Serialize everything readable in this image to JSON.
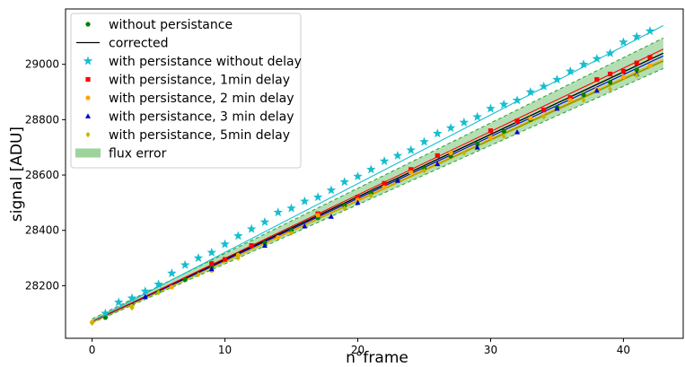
{
  "chart_data": {
    "type": "scatter",
    "title": "",
    "xlabel": "n°frame",
    "ylabel": "signal [ADU]",
    "xlim": [
      -2,
      44.5
    ],
    "ylim": [
      28010,
      29200
    ],
    "x_ticks": [
      0,
      10,
      20,
      30,
      40
    ],
    "y_ticks": [
      28200,
      28400,
      28600,
      28800,
      29000
    ],
    "grid": false,
    "legend_placement": "upper-left",
    "legend": [
      {
        "label": "without persistance",
        "marker": "circle",
        "color": "#008000"
      },
      {
        "label": "corrected",
        "marker": "line",
        "color": "#000000"
      },
      {
        "label": "with persistance without delay",
        "marker": "star",
        "color": "#17becf"
      },
      {
        "label": "with persistance, 1min delay",
        "marker": "square",
        "color": "#ff0000"
      },
      {
        "label": "with persistance, 2 min delay",
        "marker": "circle",
        "color": "#ffa500"
      },
      {
        "label": "with persistance, 3 min delay",
        "marker": "triangle",
        "color": "#0000cd"
      },
      {
        "label": "with persistance, 5min delay",
        "marker": "diamond",
        "color": "#c8b400"
      },
      {
        "label": "flux error",
        "marker": "patch",
        "color": "#82c882"
      }
    ],
    "flux_error_band": {
      "x": [
        0,
        43
      ],
      "lower": [
        28065,
        28985
      ],
      "upper": [
        28080,
        29095
      ],
      "color": "#82c882",
      "edge_color": "#2ca02c"
    },
    "lines": [
      {
        "name": "corrected",
        "color": "#000000",
        "x": [
          0,
          43
        ],
        "y": [
          28070,
          29040
        ]
      },
      {
        "name": "without persistance fit",
        "color": "#008000",
        "x": [
          0,
          43
        ],
        "y": [
          28068,
          29012
        ]
      },
      {
        "name": "without delay fit",
        "color": "#17becf",
        "x": [
          0,
          43
        ],
        "y": [
          28072,
          29140
        ]
      },
      {
        "name": "1min delay fit",
        "color": "#ff0000",
        "x": [
          0,
          43
        ],
        "y": [
          28070,
          29055
        ]
      },
      {
        "name": "2 min delay fit",
        "color": "#ffa500",
        "x": [
          0,
          43
        ],
        "y": [
          28068,
          29018
        ]
      },
      {
        "name": "3 min delay fit",
        "color": "#0000cd",
        "x": [
          0,
          43
        ],
        "y": [
          28068,
          29030
        ]
      },
      {
        "name": "5min delay fit",
        "color": "#c8b400",
        "x": [
          0,
          43
        ],
        "y": [
          28067,
          29010
        ]
      }
    ],
    "series": [
      {
        "name": "without persistance",
        "marker": "circle",
        "color": "#008000",
        "x": [
          1,
          3,
          5,
          7,
          9,
          11,
          13,
          15,
          17,
          19,
          21,
          23,
          25,
          27,
          29,
          31,
          33,
          35,
          37,
          39,
          41
        ],
        "y": [
          28085,
          28130,
          28178,
          28222,
          28268,
          28312,
          28355,
          28400,
          28445,
          28490,
          28535,
          28580,
          28625,
          28668,
          28712,
          28758,
          28800,
          28845,
          28890,
          28935,
          28980
        ]
      },
      {
        "name": "with persistance without delay",
        "marker": "star",
        "color": "#17becf",
        "x": [
          1,
          2,
          3,
          4,
          5,
          6,
          7,
          8,
          9,
          10,
          11,
          12,
          13,
          14,
          15,
          16,
          17,
          18,
          19,
          20,
          21,
          22,
          23,
          24,
          25,
          26,
          27,
          28,
          29,
          30,
          31,
          32,
          33,
          34,
          35,
          36,
          37,
          38,
          39,
          40,
          41,
          42
        ],
        "y": [
          28100,
          28140,
          28155,
          28180,
          28205,
          28245,
          28275,
          28300,
          28320,
          28350,
          28380,
          28405,
          28430,
          28465,
          28480,
          28505,
          28520,
          28545,
          28575,
          28595,
          28620,
          28650,
          28670,
          28690,
          28720,
          28750,
          28770,
          28790,
          28810,
          28840,
          28855,
          28870,
          28900,
          28920,
          28945,
          28975,
          29000,
          29020,
          29040,
          29080,
          29100,
          29120
        ]
      },
      {
        "name": "with persistance, 1min delay",
        "marker": "square",
        "color": "#ff0000",
        "x": [
          9,
          10,
          12,
          17,
          20,
          22,
          24,
          26,
          30,
          32,
          34,
          36,
          38,
          39,
          40,
          41,
          42
        ],
        "y": [
          28280,
          28295,
          28345,
          28460,
          28520,
          28570,
          28620,
          28670,
          28760,
          28795,
          28835,
          28880,
          28945,
          28965,
          28975,
          29005,
          29025
        ]
      },
      {
        "name": "with persistance, 2 min delay",
        "marker": "circle",
        "color": "#ffa500",
        "x": [
          0,
          3,
          6,
          9,
          11,
          14,
          17,
          20,
          22,
          24,
          27,
          30,
          33,
          36,
          38,
          40,
          42
        ],
        "y": [
          28068,
          28125,
          28195,
          28255,
          28310,
          28375,
          28455,
          28510,
          28555,
          28610,
          28680,
          28735,
          28805,
          28870,
          28910,
          28955,
          28995
        ]
      },
      {
        "name": "with persistance, 3 min delay",
        "marker": "triangle",
        "color": "#0000cd",
        "x": [
          4,
          9,
          13,
          16,
          18,
          20,
          23,
          26,
          29,
          32,
          35,
          38,
          41
        ],
        "y": [
          28160,
          28260,
          28345,
          28415,
          28450,
          28500,
          28580,
          28640,
          28700,
          28755,
          28840,
          28905,
          28965
        ]
      },
      {
        "name": "with persistance, 5min delay",
        "marker": "diamond",
        "color": "#c8b400",
        "x": [
          0,
          3,
          5,
          8,
          11,
          15,
          19,
          21,
          25,
          28,
          31,
          34,
          37,
          39,
          41
        ],
        "y": [
          28065,
          28120,
          28175,
          28240,
          28300,
          28390,
          28480,
          28525,
          28615,
          28680,
          28740,
          28810,
          28870,
          28910,
          28960
        ]
      }
    ]
  }
}
